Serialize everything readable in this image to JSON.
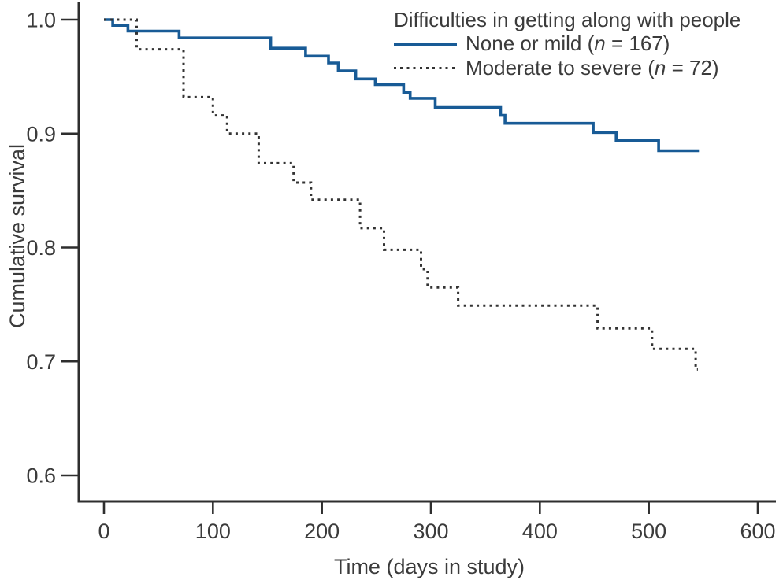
{
  "legend": {
    "title": "Difficulties in getting along with people",
    "items": [
      {
        "style": "solid",
        "swatch_icon": "solid-line-swatch",
        "label_pre": "None or mild (",
        "n_var": "n",
        "label_post": " = 167)"
      },
      {
        "style": "dotted",
        "swatch_icon": "dotted-line-swatch",
        "label_pre": "Moderate to severe (",
        "n_var": "n",
        "label_post": " = 72)"
      }
    ]
  },
  "chart_data": {
    "type": "line",
    "subtype": "kaplan-meier-step",
    "title": "",
    "xlabel": "Time (days in study)",
    "ylabel": "Cumulative survival",
    "xlim": [
      0,
      600
    ],
    "ylim": [
      0.6,
      1.0
    ],
    "grid": false,
    "legend_position": "top-right",
    "x_ticks": [
      {
        "value": 0,
        "label": "0"
      },
      {
        "value": 100,
        "label": "100"
      },
      {
        "value": 200,
        "label": "200"
      },
      {
        "value": 300,
        "label": "300"
      },
      {
        "value": 400,
        "label": "400"
      },
      {
        "value": 500,
        "label": "500"
      },
      {
        "value": 600,
        "label": "600"
      }
    ],
    "y_ticks": [
      {
        "value": 1.0,
        "label": "1.0"
      },
      {
        "value": 0.9,
        "label": "0.9"
      },
      {
        "value": 0.8,
        "label": "0.8"
      },
      {
        "value": 0.7,
        "label": "0.7"
      },
      {
        "value": 0.6,
        "label": "0.6"
      }
    ],
    "series": [
      {
        "name": "None or mild",
        "n": 167,
        "line_style": "solid",
        "color": "#185b96",
        "end_day": 546,
        "points": [
          [
            0,
            1.0
          ],
          [
            8,
            0.995
          ],
          [
            22,
            0.99
          ],
          [
            69,
            0.984
          ],
          [
            153,
            0.975
          ],
          [
            185,
            0.968
          ],
          [
            206,
            0.962
          ],
          [
            215,
            0.955
          ],
          [
            231,
            0.948
          ],
          [
            249,
            0.943
          ],
          [
            275,
            0.936
          ],
          [
            281,
            0.931
          ],
          [
            304,
            0.923
          ],
          [
            364,
            0.916
          ],
          [
            368,
            0.909
          ],
          [
            449,
            0.901
          ],
          [
            470,
            0.894
          ],
          [
            509,
            0.885
          ]
        ]
      },
      {
        "name": "Moderate to severe",
        "n": 72,
        "line_style": "dotted",
        "color": "#333333",
        "end_day": 545,
        "points": [
          [
            0,
            1.0
          ],
          [
            30,
            0.974
          ],
          [
            73,
            0.932
          ],
          [
            100,
            0.916
          ],
          [
            113,
            0.9
          ],
          [
            142,
            0.874
          ],
          [
            174,
            0.857
          ],
          [
            190,
            0.842
          ],
          [
            235,
            0.817
          ],
          [
            257,
            0.798
          ],
          [
            291,
            0.781
          ],
          [
            297,
            0.765
          ],
          [
            325,
            0.749
          ],
          [
            453,
            0.729
          ],
          [
            503,
            0.711
          ],
          [
            543,
            0.693
          ]
        ]
      }
    ]
  }
}
